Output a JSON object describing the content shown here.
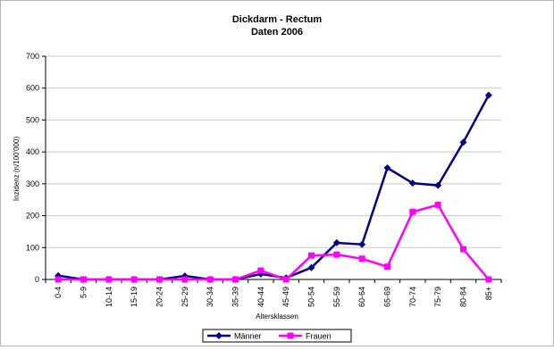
{
  "chart_data": {
    "type": "line",
    "title": "Dickdarm - Rectum",
    "subtitle": "Daten 2006",
    "xlabel": "Altersklassen",
    "ylabel": "Inzidenz (n/100'000)",
    "ylim": [
      0,
      700
    ],
    "yticks": [
      0,
      100,
      200,
      300,
      400,
      500,
      600,
      700
    ],
    "grid": true,
    "legend_position": "bottom",
    "categories": [
      "0-4",
      "5-9",
      "10-14",
      "15-19",
      "20-24",
      "25-29",
      "30-34",
      "35-39",
      "40-44",
      "45-49",
      "50-54",
      "55-59",
      "60-64",
      "65-69",
      "70-74",
      "75-79",
      "80-84",
      "85+"
    ],
    "series": [
      {
        "name": "Männer",
        "color": "#000080",
        "marker": "diamond",
        "values": [
          12,
          0,
          0,
          0,
          0,
          11,
          0,
          0,
          17,
          5,
          37,
          115,
          110,
          350,
          302,
          295,
          430,
          578
        ]
      },
      {
        "name": "Frauen",
        "color": "#ff00ff",
        "marker": "square",
        "values": [
          0,
          0,
          0,
          0,
          0,
          0,
          0,
          0,
          28,
          0,
          75,
          78,
          65,
          40,
          212,
          234,
          95,
          0
        ]
      }
    ]
  }
}
